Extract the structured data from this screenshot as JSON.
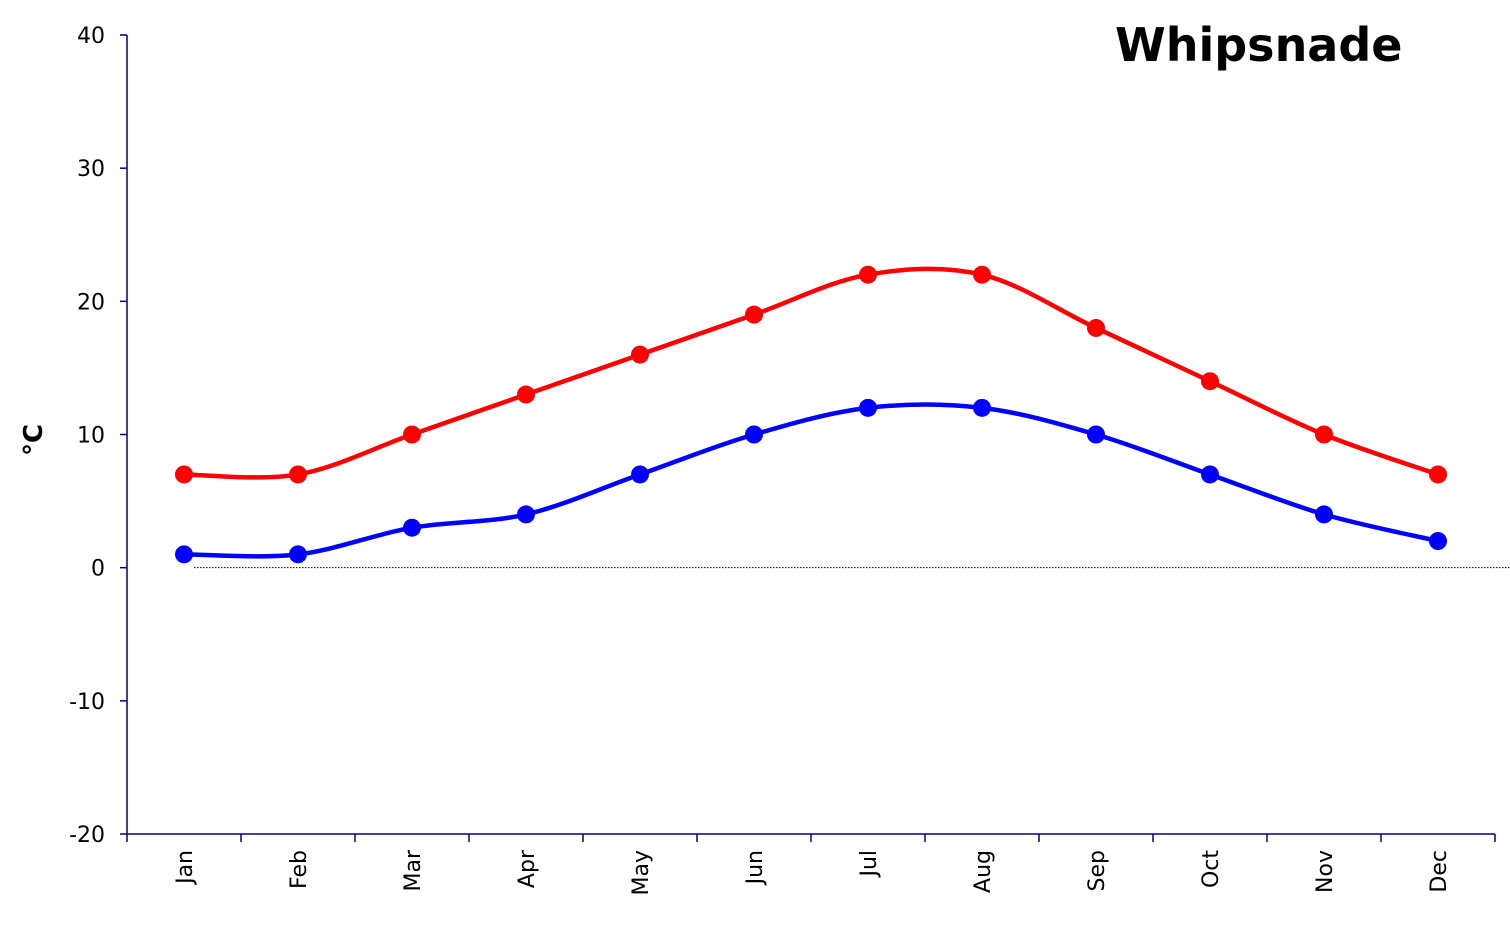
{
  "chart_data": {
    "type": "line",
    "title": "Whipsnade",
    "xlabel": "",
    "ylabel": "°C",
    "categories": [
      "Jan",
      "Feb",
      "Mar",
      "Apr",
      "May",
      "Jun",
      "Jul",
      "Aug",
      "Sep",
      "Oct",
      "Nov",
      "Dec"
    ],
    "ylim": [
      -20,
      40
    ],
    "yticks": [
      -20,
      -10,
      0,
      10,
      20,
      30,
      40
    ],
    "grid": false,
    "reference_line": {
      "y": 0,
      "style": "dotted"
    },
    "series": [
      {
        "color": "#ff0000",
        "values": [
          7,
          7,
          10,
          13,
          16,
          19,
          22,
          22,
          18,
          14,
          10,
          7
        ]
      },
      {
        "color": "#0000ff",
        "values": [
          1,
          1,
          3,
          4,
          7,
          10,
          12,
          12,
          10,
          7,
          4,
          2
        ]
      }
    ]
  }
}
